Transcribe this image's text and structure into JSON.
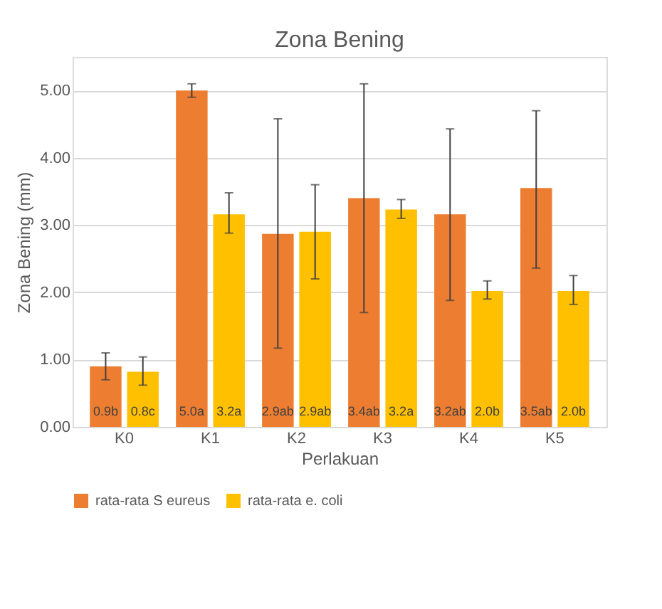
{
  "chart_data": {
    "type": "bar",
    "title": "Zona Bening",
    "xlabel": "Perlakuan",
    "ylabel": "Zona Bening (mm)",
    "categories": [
      "K0",
      "K1",
      "K2",
      "K3",
      "K4",
      "K5"
    ],
    "series": [
      {
        "name": "rata-rata S eureus",
        "color": "#ed7d31",
        "values": [
          0.9,
          5.0,
          2.87,
          3.4,
          3.16,
          3.55
        ],
        "errors": [
          [
            0.7,
            1.1
          ],
          [
            4.9,
            5.1
          ],
          [
            1.17,
            4.58
          ],
          [
            1.7,
            5.1
          ],
          [
            1.88,
            4.43
          ],
          [
            2.36,
            4.7
          ]
        ],
        "value_labels": [
          "0.9b",
          "5.0a",
          "2.9ab",
          "3.4ab",
          "3.2ab",
          "3.5ab"
        ]
      },
      {
        "name": "rata-rata e. coli",
        "color": "#ffc000",
        "values": [
          0.82,
          3.16,
          2.9,
          3.23,
          2.02,
          2.02
        ],
        "errors": [
          [
            0.62,
            1.04
          ],
          [
            2.88,
            3.48
          ],
          [
            2.2,
            3.6
          ],
          [
            3.1,
            3.38
          ],
          [
            1.9,
            2.17
          ],
          [
            1.82,
            2.25
          ]
        ],
        "value_labels": [
          "0.8c",
          "3.2a",
          "2.9ab",
          "3.2a",
          "2.0b",
          "2.0b"
        ]
      }
    ],
    "ylim": [
      0,
      5.5
    ],
    "yticks": [
      {
        "value": 0,
        "label": "0.00"
      },
      {
        "value": 1,
        "label": "1.00"
      },
      {
        "value": 2,
        "label": "2.00"
      },
      {
        "value": 3,
        "label": "3.00"
      },
      {
        "value": 4,
        "label": "4.00"
      },
      {
        "value": 5,
        "label": "5.00"
      }
    ],
    "grid": "y",
    "legend": "bottom"
  }
}
